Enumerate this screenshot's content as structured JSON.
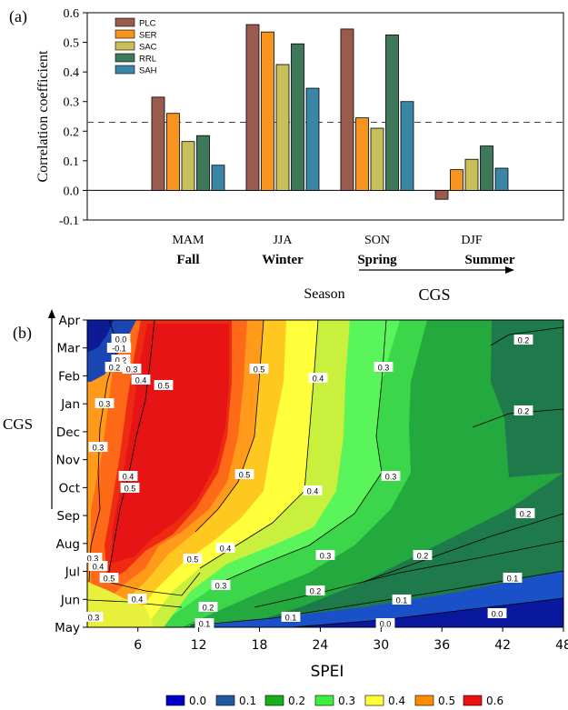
{
  "chart_data": [
    {
      "panel_label": "(a)",
      "type": "bar",
      "ylabel": "Correlation coefficient",
      "xlabel": "Season",
      "ylim": [
        -0.1,
        0.6
      ],
      "yticks": [
        "-0.1",
        "0.0",
        "0.1",
        "0.2",
        "0.3",
        "0.4",
        "0.5",
        "0.6"
      ],
      "categories": [
        "MAM",
        "JJA",
        "SON",
        "DJF"
      ],
      "cgs_seasons": [
        "Fall",
        "Winter",
        "Spring",
        "Summer"
      ],
      "cgs_label": "CGS",
      "threshold_line": 0.23,
      "legend_position": "top-left",
      "series": [
        {
          "name": "PLC",
          "color": "#9b5a4e",
          "values": [
            0.315,
            0.56,
            0.545,
            -0.03
          ]
        },
        {
          "name": "SER",
          "color": "#f7941d",
          "values": [
            0.26,
            0.535,
            0.245,
            0.07
          ]
        },
        {
          "name": "SAC",
          "color": "#c8be5a",
          "values": [
            0.165,
            0.425,
            0.21,
            0.105
          ]
        },
        {
          "name": "RRL",
          "color": "#3e7a5a",
          "values": [
            0.185,
            0.495,
            0.525,
            0.15
          ]
        },
        {
          "name": "SAH",
          "color": "#3b86a6",
          "values": [
            0.085,
            0.345,
            0.3,
            0.075
          ]
        }
      ]
    },
    {
      "panel_label": "(b)",
      "type": "heatmap",
      "xlabel": "SPEI",
      "ylabel": "CGS",
      "xticks": [
        "6",
        "12",
        "18",
        "24",
        "30",
        "36",
        "42",
        "48"
      ],
      "yticks": [
        "May",
        "Jun",
        "Jul",
        "Aug",
        "Sep",
        "Oct",
        "Nov",
        "Dec",
        "Jan",
        "Feb",
        "Mar",
        "Apr"
      ],
      "xlim": [
        1,
        48
      ],
      "colorbar": {
        "labels": [
          "0.0",
          "0.1",
          "0.2",
          "0.3",
          "0.4",
          "0.5",
          "0.6"
        ],
        "colors": [
          "#0000c8",
          "#1f5aa0",
          "#17b017",
          "#3cf03c",
          "#ffff3c",
          "#ff8c00",
          "#ee1111"
        ]
      },
      "contour_labels": [
        "-0.1",
        "0.0",
        "0.1",
        "0.2",
        "0.3",
        "0.4",
        "0.5"
      ]
    }
  ]
}
